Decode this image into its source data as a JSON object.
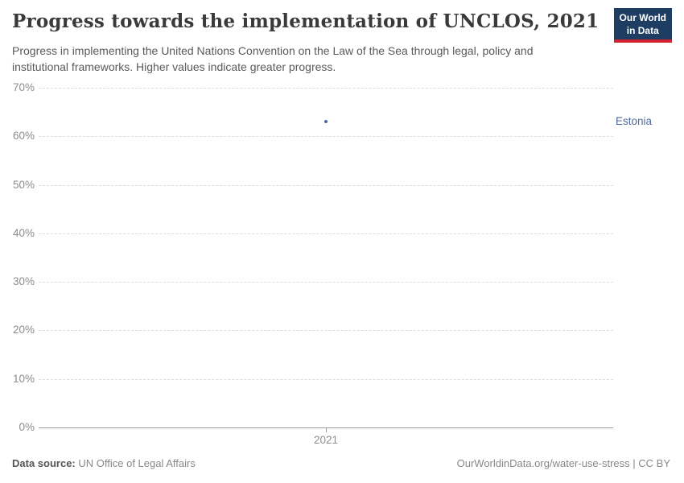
{
  "header": {
    "title": "Progress towards the implementation of UNCLOS, 2021",
    "subtitle": "Progress in implementing the United Nations Convention on the Law of the Sea through legal, policy and institutional frameworks. Higher values indicate greater progress.",
    "logo": {
      "line1": "Our World",
      "line2": "in Data"
    }
  },
  "chart_data": {
    "type": "scatter",
    "series": [
      {
        "name": "Estonia",
        "x": [
          2021
        ],
        "values": [
          63
        ]
      }
    ],
    "x_ticks": [
      "2021"
    ],
    "y_ticks": [
      0,
      10,
      20,
      30,
      40,
      50,
      60,
      70
    ],
    "y_tick_suffix": "%",
    "ylim": [
      0,
      70
    ],
    "grid": true,
    "legend_position": "right-of-point",
    "point_color": "#4c6a9c",
    "entity_label": "Estonia"
  },
  "footer": {
    "source_label": "Data source:",
    "source_value": "UN Office of Legal Affairs",
    "link": "OurWorldinData.org/water-use-stress | CC BY"
  }
}
